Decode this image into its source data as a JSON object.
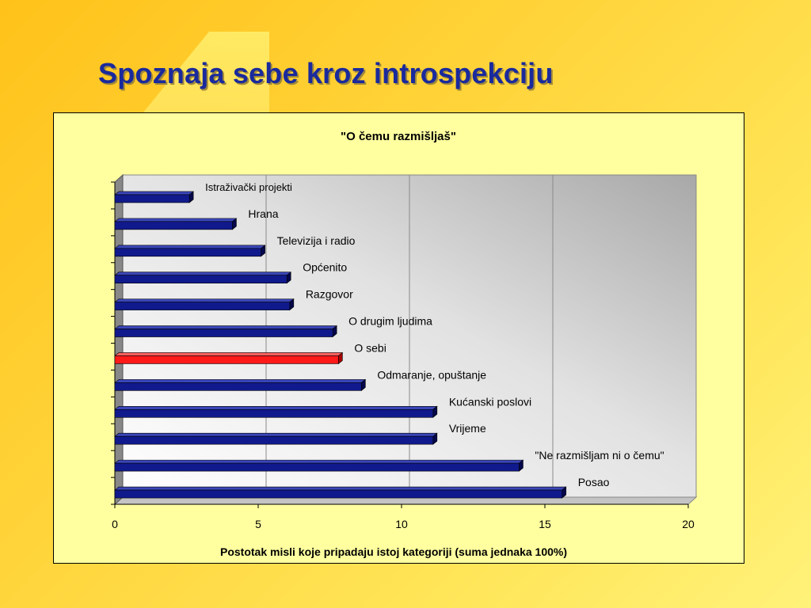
{
  "slide": {
    "title": "Spoznaja sebe kroz introspekciju"
  },
  "colors": {
    "bar": "#101a8c",
    "highlight": "#ff1a1a",
    "title": "#1a2a9c",
    "chart_bg": "#ffffa0"
  },
  "chart_data": {
    "type": "bar",
    "orientation": "horizontal",
    "title": "\"O čemu razmišljaš\"",
    "xlabel": "Postotak misli koje pripadaju istoj kategoriji (suma jednaka 100%)",
    "ylabel": "",
    "xlim": [
      0,
      20
    ],
    "xticks": [
      "0",
      "5",
      "10",
      "15",
      "20"
    ],
    "grid": true,
    "legend": "none",
    "highlighted_category": "O sebi",
    "categories": [
      "Istraživački projekti",
      "Hrana",
      "Televizija i radio",
      "Općenito",
      "Razgovor",
      "O drugim ljudima",
      "O sebi",
      "Odmaranje, opuštanje",
      "Kućanski poslovi",
      "Vrijeme",
      "\"Ne razmišljam ni o čemu\"",
      "Posao"
    ],
    "values": [
      2.6,
      4.1,
      5.1,
      6.0,
      6.1,
      7.6,
      7.8,
      8.6,
      11.1,
      11.1,
      14.1,
      15.6
    ]
  }
}
